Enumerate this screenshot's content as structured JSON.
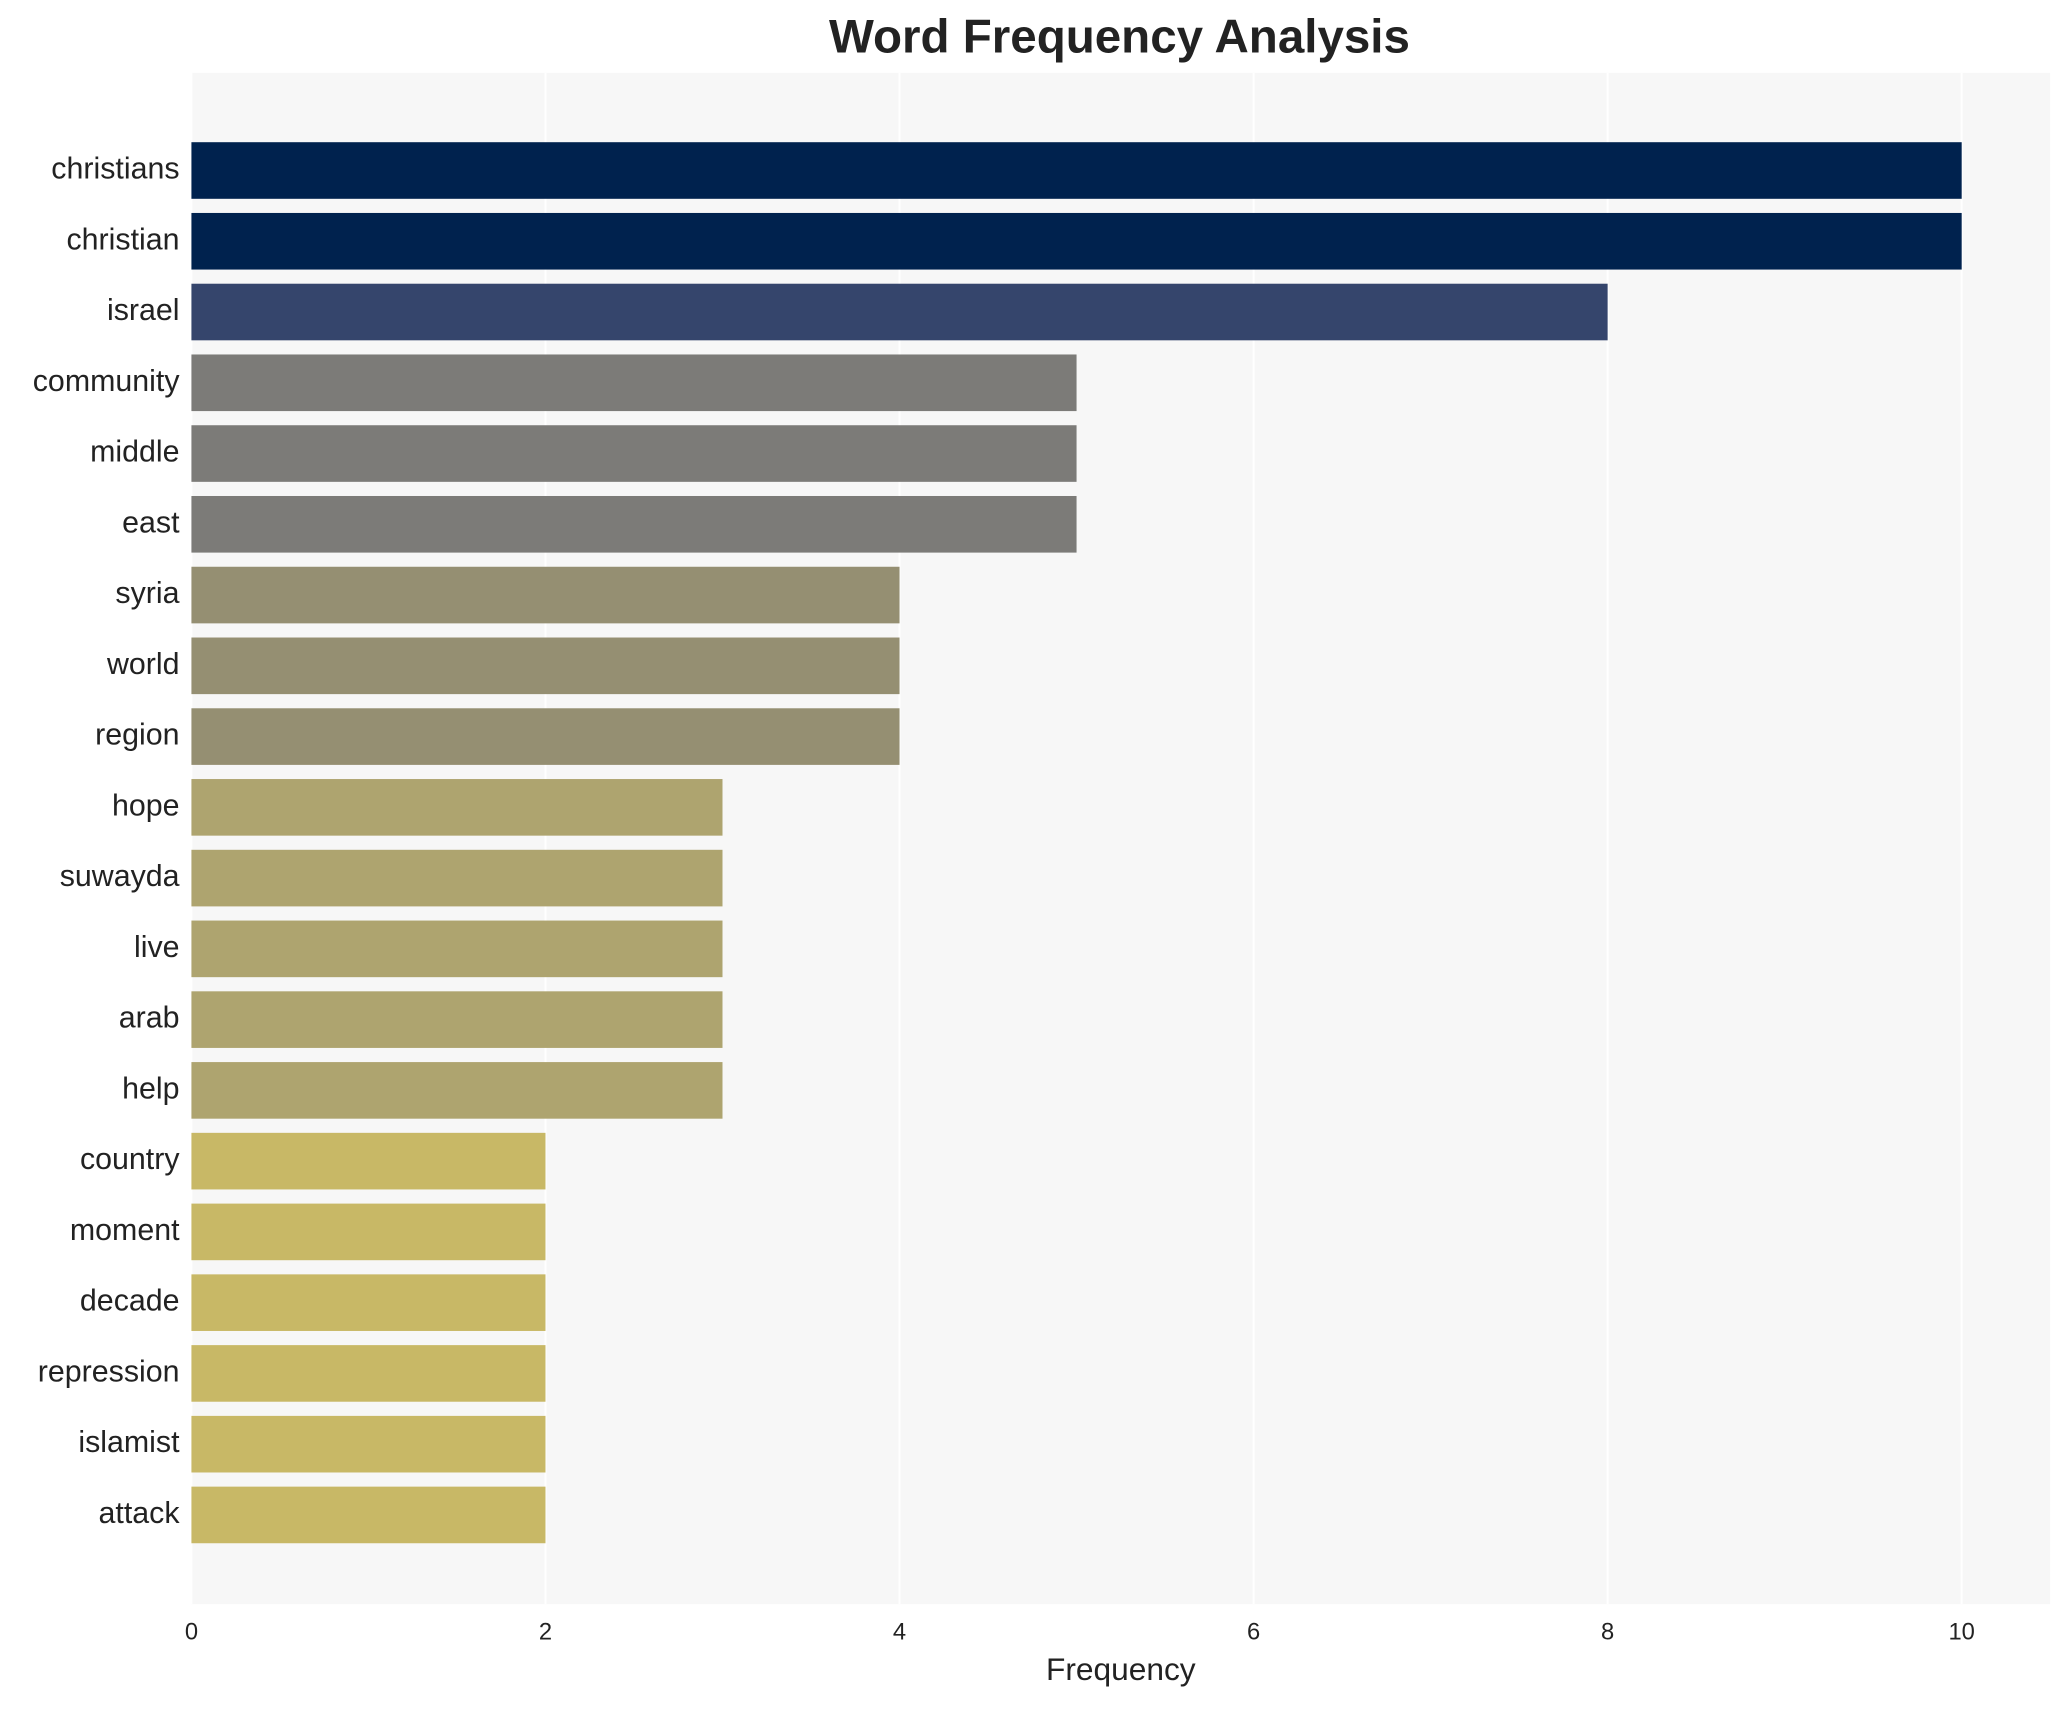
{
  "chart_data": {
    "type": "barh",
    "title": "Word Frequency Analysis",
    "xlabel": "Frequency",
    "categories": [
      "christians",
      "christian",
      "israel",
      "community",
      "middle",
      "east",
      "syria",
      "world",
      "region",
      "hope",
      "suwayda",
      "live",
      "arab",
      "help",
      "country",
      "moment",
      "decade",
      "repression",
      "islamist",
      "attack"
    ],
    "values": [
      10,
      10,
      8,
      5,
      5,
      5,
      4,
      4,
      4,
      3,
      3,
      3,
      3,
      3,
      2,
      2,
      2,
      2,
      2,
      2
    ],
    "colors": [
      "#00224e",
      "#00224e",
      "#35456c",
      "#7c7b78",
      "#7c7b78",
      "#7c7b78",
      "#958f72",
      "#958f72",
      "#958f72",
      "#aea46f",
      "#aea46f",
      "#aea46f",
      "#aea46f",
      "#aea46f",
      "#c8b866",
      "#c8b866",
      "#c8b866",
      "#c8b866",
      "#c8b866",
      "#c8b866"
    ],
    "xlim": [
      0,
      10.5
    ],
    "xticks": [
      0,
      2,
      4,
      6,
      8,
      10
    ],
    "grid": true
  }
}
